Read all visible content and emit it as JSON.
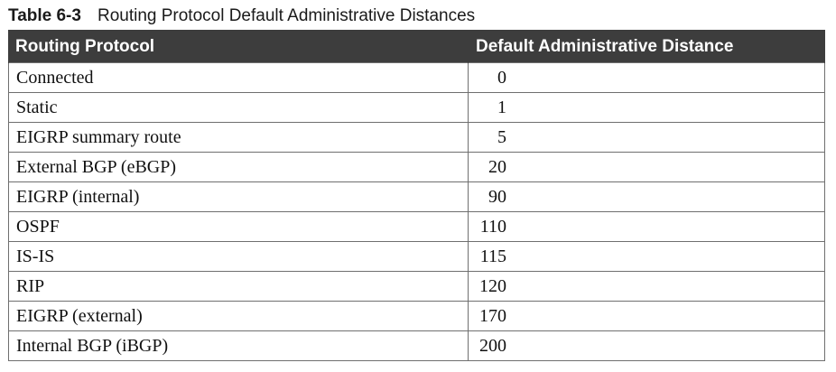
{
  "caption": {
    "number": "Table 6-3",
    "title": "Routing Protocol Default Administrative Distances"
  },
  "table": {
    "headers": [
      "Routing Protocol",
      "Default Administrative Distance"
    ],
    "rows": [
      {
        "protocol": "Connected",
        "distance": "0"
      },
      {
        "protocol": "Static",
        "distance": "1"
      },
      {
        "protocol": "EIGRP summary route",
        "distance": "5"
      },
      {
        "protocol": "External BGP (eBGP)",
        "distance": "20"
      },
      {
        "protocol": "EIGRP (internal)",
        "distance": "90"
      },
      {
        "protocol": "OSPF",
        "distance": "110"
      },
      {
        "protocol": "IS-IS",
        "distance": "115"
      },
      {
        "protocol": "RIP",
        "distance": "120"
      },
      {
        "protocol": "EIGRP (external)",
        "distance": "170"
      },
      {
        "protocol": "Internal BGP (iBGP)",
        "distance": "200"
      }
    ]
  },
  "colors": {
    "header_background": "#3d3d3d",
    "header_text": "#ffffff",
    "grid_line": "#6f6f6f"
  }
}
